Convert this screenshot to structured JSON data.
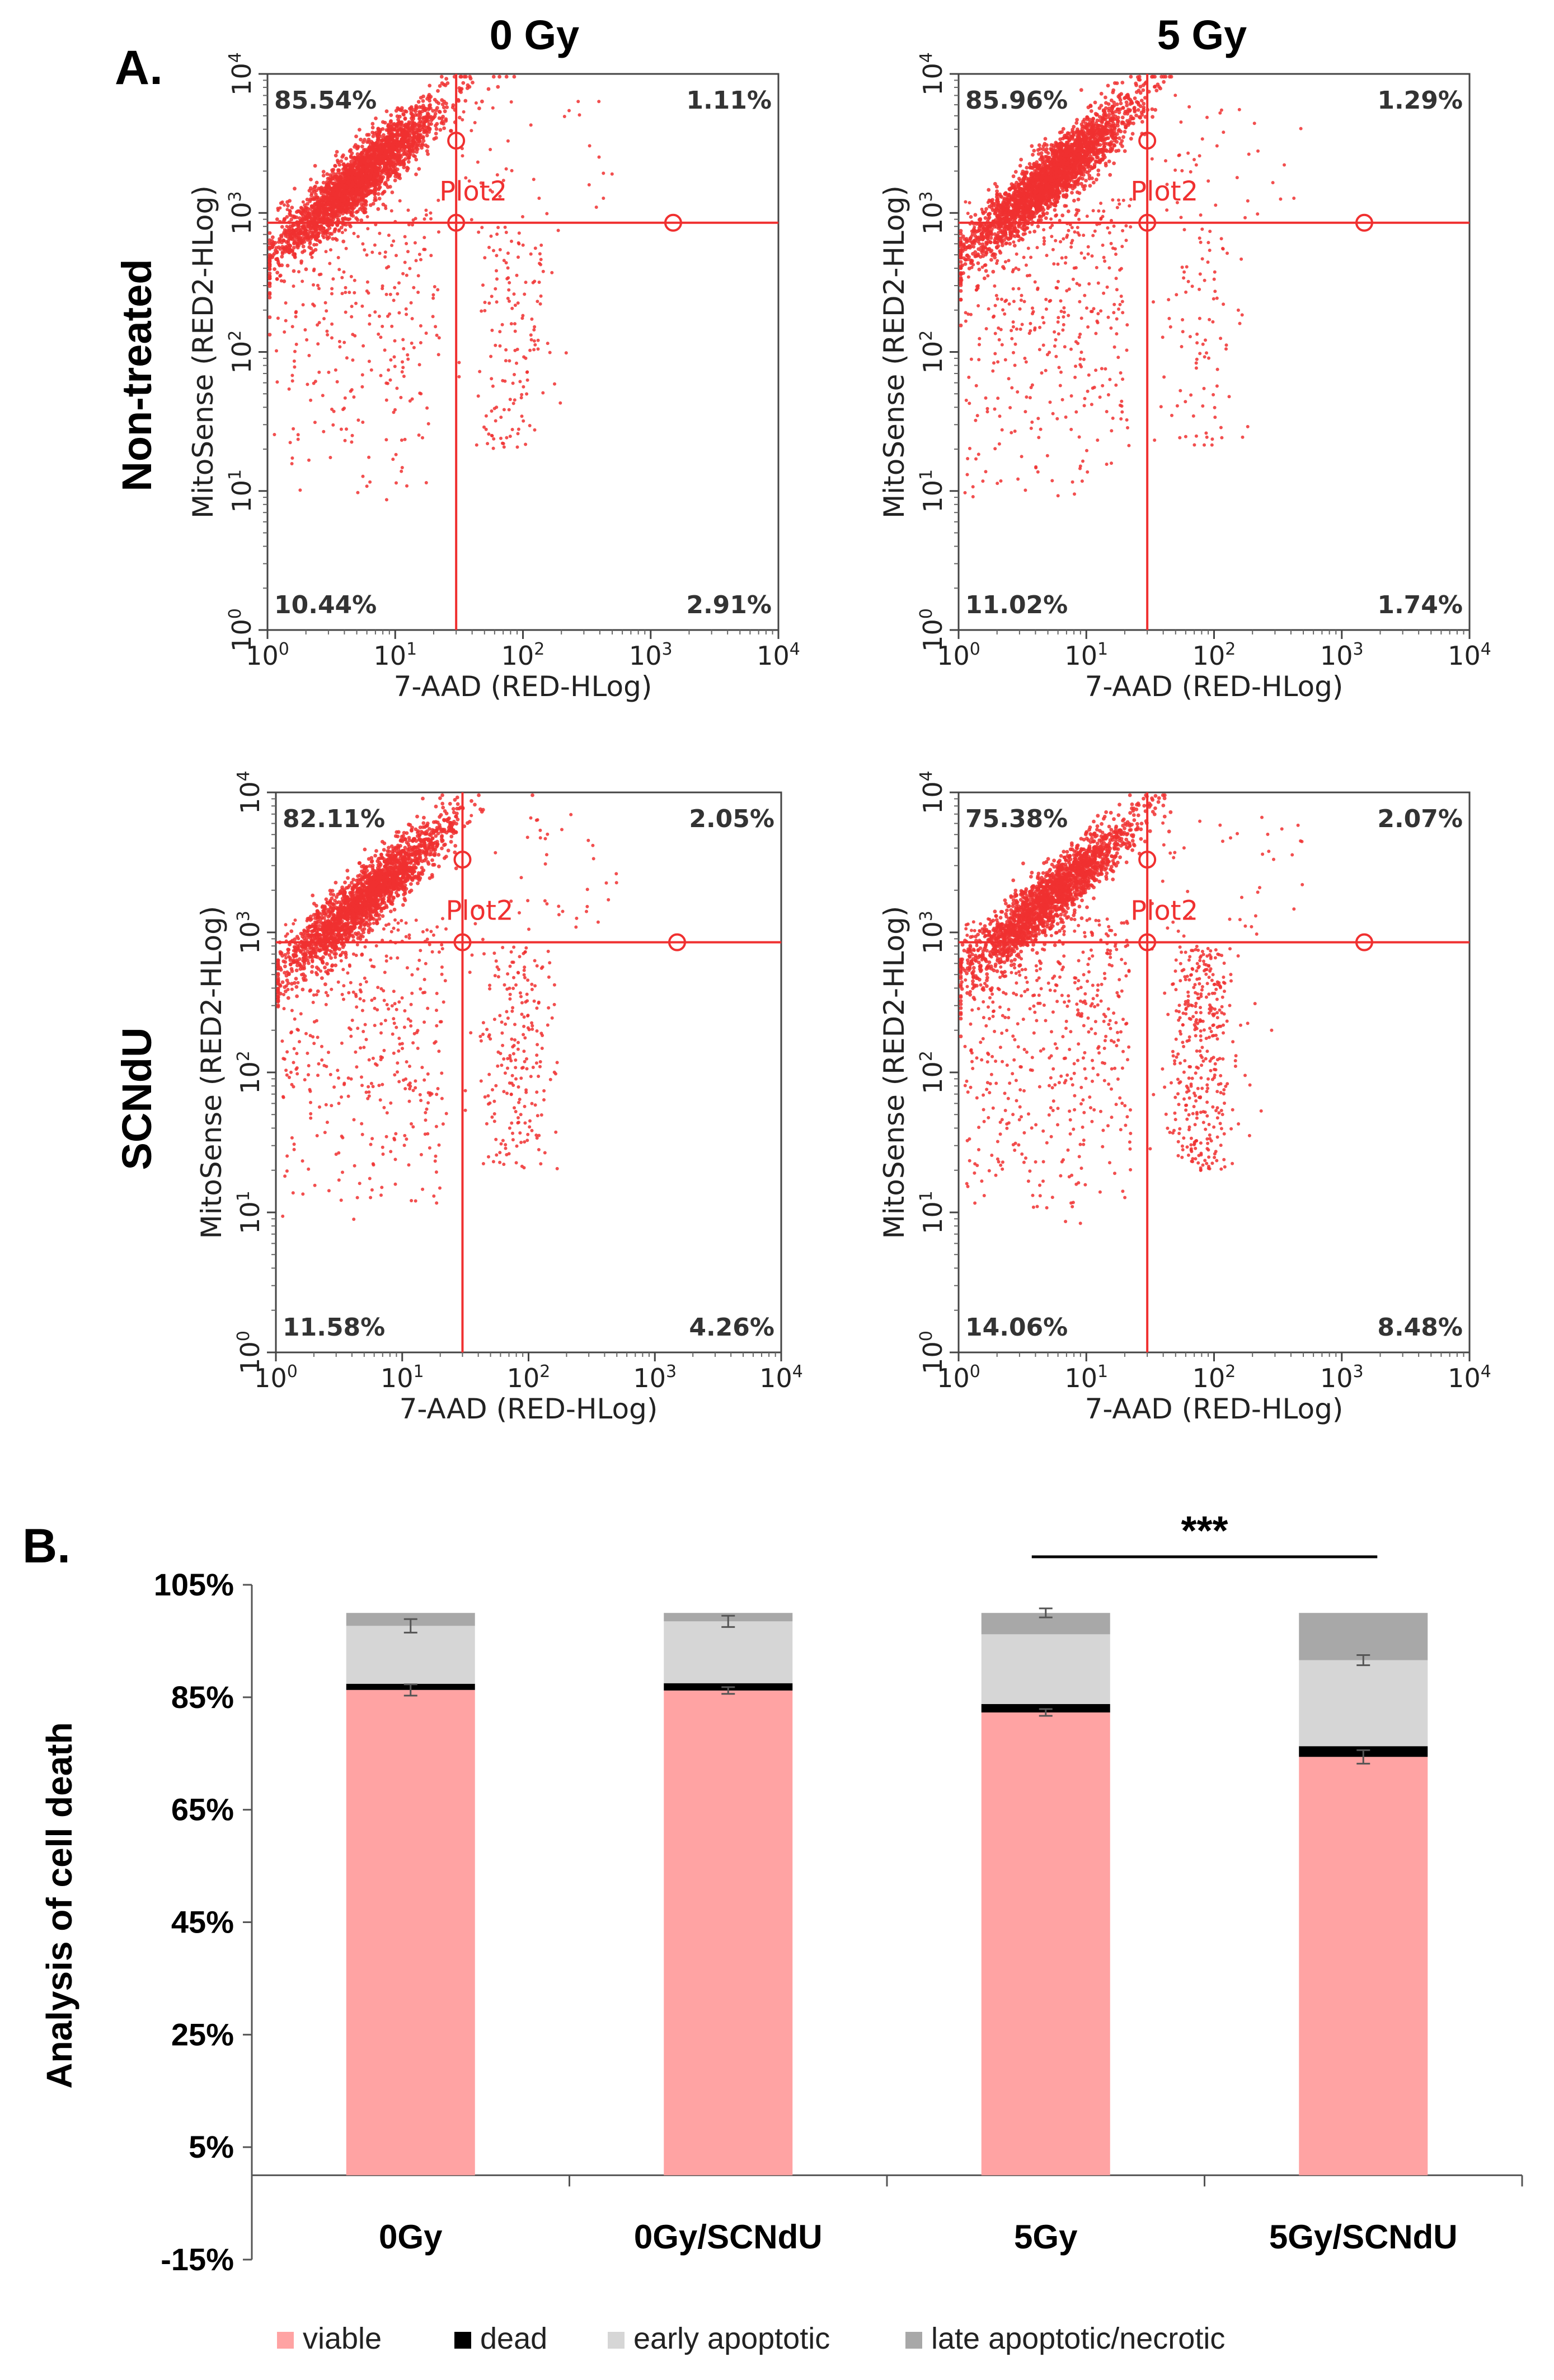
{
  "panel_a_label": "A.",
  "panel_b_label": "B.",
  "column_headers": [
    "0 Gy",
    "5 Gy"
  ],
  "row_headers": [
    "Non-treated",
    "SCNdU"
  ],
  "colors": {
    "dots": "#f03030",
    "gate": "#f03030",
    "viable": "#ffa3a3",
    "dead": "#000000",
    "early": "#d6d6d6",
    "late": "#a8a8a8",
    "error": "#555555"
  },
  "chart_data": [
    {
      "type": "scatter",
      "id": "nontreated-0gy",
      "row": "Non-treated",
      "column": "0 Gy",
      "xlabel": "7-AAD (RED-HLog)",
      "ylabel": "MitoSense (RED2-HLog)",
      "xlim": [
        1,
        10000
      ],
      "ylim": [
        1,
        10000
      ],
      "scale": "log",
      "tick_base": "10",
      "tick_exponents": [
        "0",
        "1",
        "2",
        "3",
        "4"
      ],
      "gate_label": "Plot2",
      "gate_x": 30,
      "gate_y": 850,
      "quadrants": {
        "upper_left": "85.54%",
        "upper_right": "1.11%",
        "lower_left": "10.44%",
        "lower_right": "2.91%"
      }
    },
    {
      "type": "scatter",
      "id": "nontreated-5gy",
      "row": "Non-treated",
      "column": "5 Gy",
      "xlabel": "7-AAD (RED-HLog)",
      "ylabel": "MitoSense (RED2-HLog)",
      "xlim": [
        1,
        10000
      ],
      "ylim": [
        1,
        10000
      ],
      "scale": "log",
      "tick_base": "10",
      "tick_exponents": [
        "0",
        "1",
        "2",
        "3",
        "4"
      ],
      "gate_label": "Plot2",
      "gate_x": 30,
      "gate_y": 850,
      "quadrants": {
        "upper_left": "85.96%",
        "upper_right": "1.29%",
        "lower_left": "11.02%",
        "lower_right": "1.74%"
      }
    },
    {
      "type": "scatter",
      "id": "scndu-0gy",
      "row": "SCNdU",
      "column": "0 Gy",
      "xlabel": "7-AAD (RED-HLog)",
      "ylabel": "MitoSense (RED2-HLog)",
      "xlim": [
        1,
        10000
      ],
      "ylim": [
        1,
        10000
      ],
      "scale": "log",
      "tick_base": "10",
      "tick_exponents": [
        "0",
        "1",
        "2",
        "3",
        "4"
      ],
      "gate_label": "Plot2",
      "gate_x": 30,
      "gate_y": 850,
      "quadrants": {
        "upper_left": "82.11%",
        "upper_right": "2.05%",
        "lower_left": "11.58%",
        "lower_right": "4.26%"
      }
    },
    {
      "type": "scatter",
      "id": "scndu-5gy",
      "row": "SCNdU",
      "column": "5 Gy",
      "xlabel": "7-AAD (RED-HLog)",
      "ylabel": "MitoSense (RED2-HLog)",
      "xlim": [
        1,
        10000
      ],
      "ylim": [
        1,
        10000
      ],
      "scale": "log",
      "tick_base": "10",
      "tick_exponents": [
        "0",
        "1",
        "2",
        "3",
        "4"
      ],
      "gate_label": "Plot2",
      "gate_x": 30,
      "gate_y": 850,
      "quadrants": {
        "upper_left": "75.38%",
        "upper_right": "2.07%",
        "lower_left": "14.06%",
        "lower_right": "8.48%"
      }
    },
    {
      "type": "bar",
      "stacked": true,
      "ylabel": "Analysis of cell death",
      "ylim": [
        -15,
        105
      ],
      "yticks": [
        "105%",
        "85%",
        "65%",
        "45%",
        "25%",
        "5%",
        "-15%"
      ],
      "ytick_values": [
        105,
        85,
        65,
        45,
        25,
        5,
        -15
      ],
      "categories": [
        "0Gy",
        "0Gy/SCNdU",
        "5Gy",
        "5Gy/SCNdU"
      ],
      "series": [
        {
          "name": "viable",
          "values": [
            86.3,
            86.2,
            82.3,
            74.4
          ],
          "errors": [
            1.0,
            0.6,
            0.6,
            1.2
          ]
        },
        {
          "name": "dead",
          "values": [
            1.1,
            1.3,
            1.5,
            1.9
          ]
        },
        {
          "name": "early apoptotic",
          "values": [
            10.3,
            11.0,
            12.4,
            15.3
          ],
          "errors": [
            1.2,
            1.0,
            0.0,
            0.9
          ]
        },
        {
          "name": "late apoptotic/necrotic",
          "values": [
            2.3,
            1.5,
            3.8,
            8.4
          ],
          "errors": [
            0.0,
            0.0,
            0.8,
            0.0
          ]
        }
      ],
      "significance": {
        "label": "***",
        "between": [
          "5Gy",
          "5Gy/SCNdU"
        ]
      },
      "legend_position": "bottom"
    }
  ]
}
